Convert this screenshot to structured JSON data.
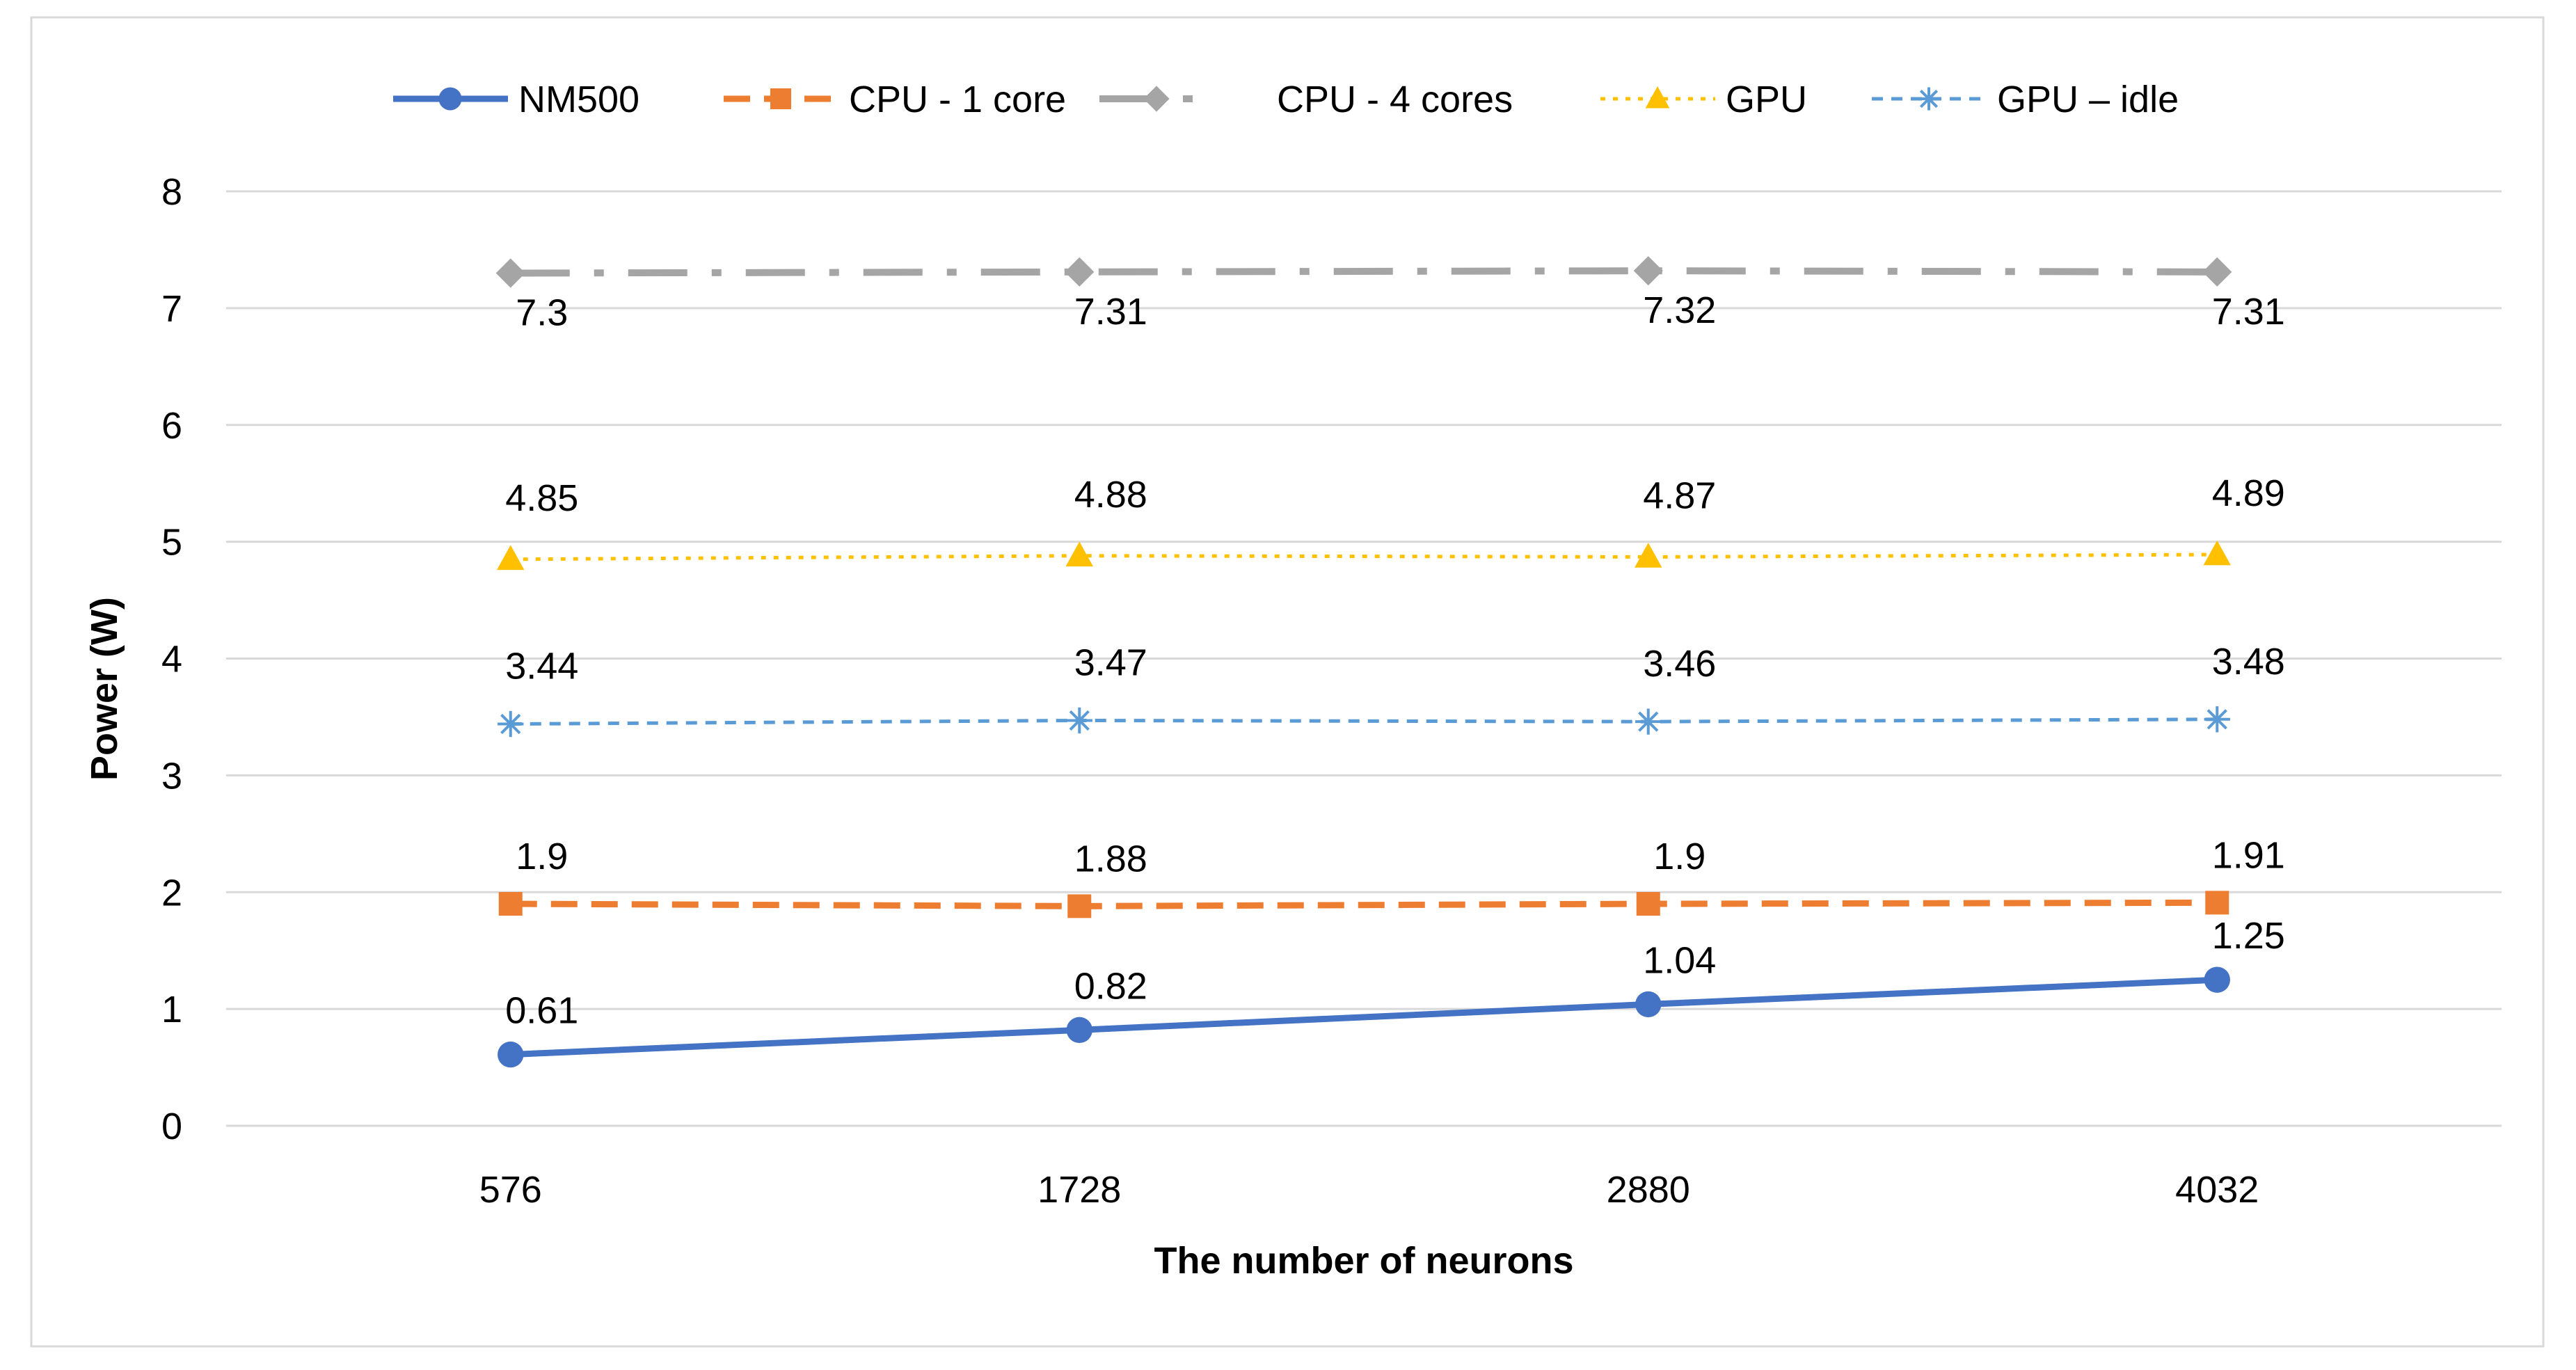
{
  "chart_data": {
    "type": "line",
    "title": "",
    "xlabel": "The number of neurons",
    "ylabel": "Power (W)",
    "categories": [
      "576",
      "1728",
      "2880",
      "4032"
    ],
    "ylim": [
      0,
      8
    ],
    "yticks": [
      0,
      1,
      2,
      3,
      4,
      5,
      6,
      7,
      8
    ],
    "grid": true,
    "legend_position": "top",
    "series": [
      {
        "name": "NM500",
        "values": [
          0.61,
          0.82,
          1.04,
          1.25
        ],
        "labels": [
          "0.61",
          "0.82",
          "1.04",
          "1.25"
        ],
        "color": "#4472C4",
        "marker": "circle",
        "line": "solid"
      },
      {
        "name": "CPU - 1 core",
        "values": [
          1.9,
          1.88,
          1.9,
          1.91
        ],
        "labels": [
          "1.9",
          "1.88",
          "1.9",
          "1.91"
        ],
        "color": "#ED7D31",
        "marker": "square",
        "line": "dashed"
      },
      {
        "name": "CPU - 4 cores",
        "values": [
          7.3,
          7.31,
          7.32,
          7.31
        ],
        "labels": [
          "7.3",
          "7.31",
          "7.32",
          "7.31"
        ],
        "color": "#A5A5A5",
        "marker": "diamond",
        "line": "dash-dot"
      },
      {
        "name": "GPU",
        "values": [
          4.85,
          4.88,
          4.87,
          4.89
        ],
        "labels": [
          "4.85",
          "4.88",
          "4.87",
          "4.89"
        ],
        "color": "#FFC000",
        "marker": "triangle",
        "line": "dotted"
      },
      {
        "name": "GPU – idle",
        "values": [
          3.44,
          3.47,
          3.46,
          3.48
        ],
        "labels": [
          "3.44",
          "3.47",
          "3.46",
          "3.48"
        ],
        "color": "#5B9BD5",
        "marker": "asterisk",
        "line": "short-dash"
      }
    ]
  }
}
